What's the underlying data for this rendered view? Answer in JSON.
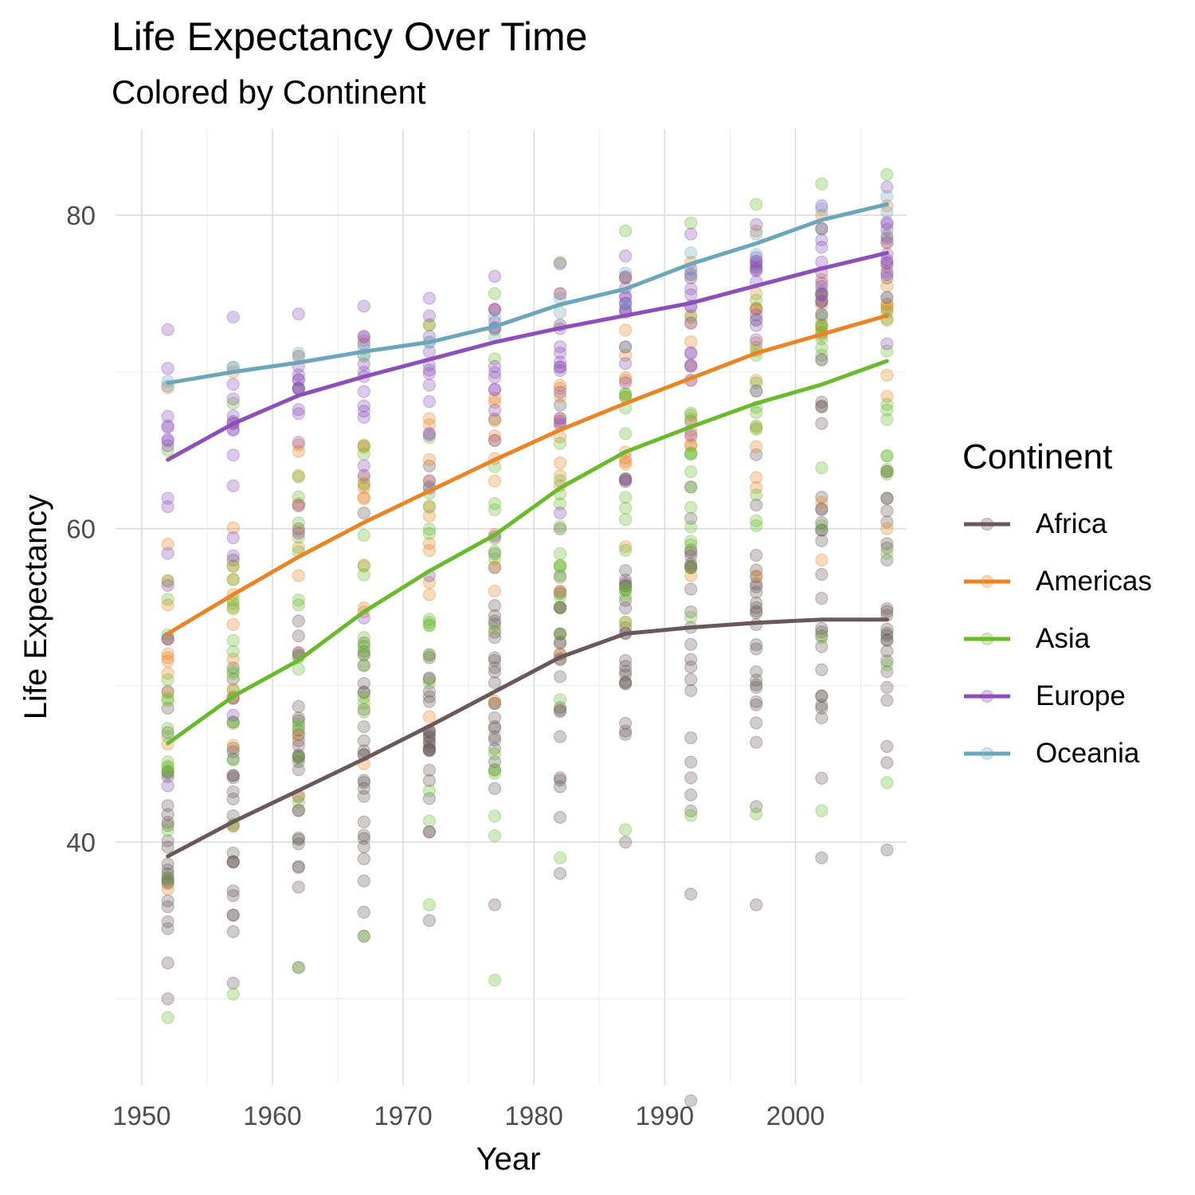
{
  "title": "Life Expectancy Over Time",
  "subtitle": "Colored by Continent",
  "chart_data": {
    "type": "scatter",
    "xlabel": "Year",
    "ylabel": "Life Expectancy",
    "xlim": [
      1948,
      2008.5
    ],
    "ylim": [
      24.5,
      85.5
    ],
    "x_ticks": [
      1950,
      1960,
      1970,
      1980,
      1990,
      2000
    ],
    "y_ticks": [
      40,
      60,
      80
    ],
    "grid": true,
    "legend_title": "Continent",
    "legend_position": "right",
    "years": [
      1952,
      1957,
      1962,
      1967,
      1972,
      1977,
      1982,
      1987,
      1992,
      1997,
      2002,
      2007
    ],
    "series": [
      {
        "name": "Africa",
        "color": "#6b585a",
        "trend": [
          39.1,
          41.3,
          43.3,
          45.3,
          47.4,
          49.6,
          51.8,
          53.3,
          53.7,
          54.0,
          54.2,
          54.2
        ],
        "range": [
          [
            30,
            53
          ],
          [
            31,
            58
          ],
          [
            32,
            60
          ],
          [
            34,
            61
          ],
          [
            35,
            64
          ],
          [
            36,
            67
          ],
          [
            38,
            73
          ],
          [
            40,
            76
          ],
          [
            23.5,
            76
          ],
          [
            36,
            74
          ],
          [
            39,
            75
          ],
          [
            39.5,
            76
          ]
        ]
      },
      {
        "name": "Americas",
        "color": "#e98524",
        "trend": [
          53.3,
          55.8,
          58.2,
          60.4,
          62.4,
          64.4,
          66.3,
          68.0,
          69.6,
          71.2,
          72.4,
          73.6
        ],
        "range": [
          [
            37,
            69
          ],
          [
            41,
            70
          ],
          [
            43,
            71
          ],
          [
            45,
            72
          ],
          [
            48,
            73
          ],
          [
            49,
            74
          ],
          [
            52,
            75
          ],
          [
            54,
            76
          ],
          [
            57,
            77
          ],
          [
            57,
            79
          ],
          [
            58,
            80
          ],
          [
            60,
            80.6
          ]
        ]
      },
      {
        "name": "Asia",
        "color": "#6aba2e",
        "trend": [
          46.3,
          49.3,
          51.6,
          54.7,
          57.3,
          59.6,
          62.6,
          64.9,
          66.5,
          68.0,
          69.2,
          70.7
        ],
        "range": [
          [
            28.8,
            65
          ],
          [
            30.3,
            68
          ],
          [
            32,
            69
          ],
          [
            34,
            71
          ],
          [
            36,
            73
          ],
          [
            31.2,
            75
          ],
          [
            39,
            77
          ],
          [
            40.8,
            79
          ],
          [
            41.7,
            79.5
          ],
          [
            41.8,
            80.7
          ],
          [
            42,
            82
          ],
          [
            43.8,
            82.6
          ]
        ]
      },
      {
        "name": "Europe",
        "color": "#8c50b8",
        "trend": [
          64.4,
          66.7,
          68.5,
          69.7,
          70.8,
          71.9,
          72.8,
          73.6,
          74.4,
          75.5,
          76.6,
          77.6
        ],
        "range": [
          [
            43.6,
            72.7
          ],
          [
            48.1,
            73.5
          ],
          [
            52.1,
            73.7
          ],
          [
            54.3,
            74.2
          ],
          [
            57,
            74.7
          ],
          [
            59.5,
            76.1
          ],
          [
            61,
            76.9
          ],
          [
            63,
            77.4
          ],
          [
            66,
            78.8
          ],
          [
            68.8,
            79.4
          ],
          [
            70.8,
            80.6
          ],
          [
            71.8,
            81.8
          ]
        ]
      },
      {
        "name": "Oceania",
        "color": "#6ca6bb",
        "trend": [
          69.3,
          70.0,
          70.6,
          71.3,
          71.9,
          72.9,
          74.3,
          75.3,
          76.9,
          78.2,
          79.7,
          80.7
        ],
        "range": [
          [
            69.1,
            69.4
          ],
          [
            70.3,
            70.3
          ],
          [
            71.0,
            71.2
          ],
          [
            71.1,
            71.5
          ],
          [
            71.9,
            71.9
          ],
          [
            72.2,
            73.5
          ],
          [
            73.8,
            74.7
          ],
          [
            74.3,
            76.3
          ],
          [
            76.3,
            77.6
          ],
          [
            77.5,
            78.8
          ],
          [
            79.1,
            80.4
          ],
          [
            80.2,
            81.2
          ]
        ]
      }
    ]
  }
}
